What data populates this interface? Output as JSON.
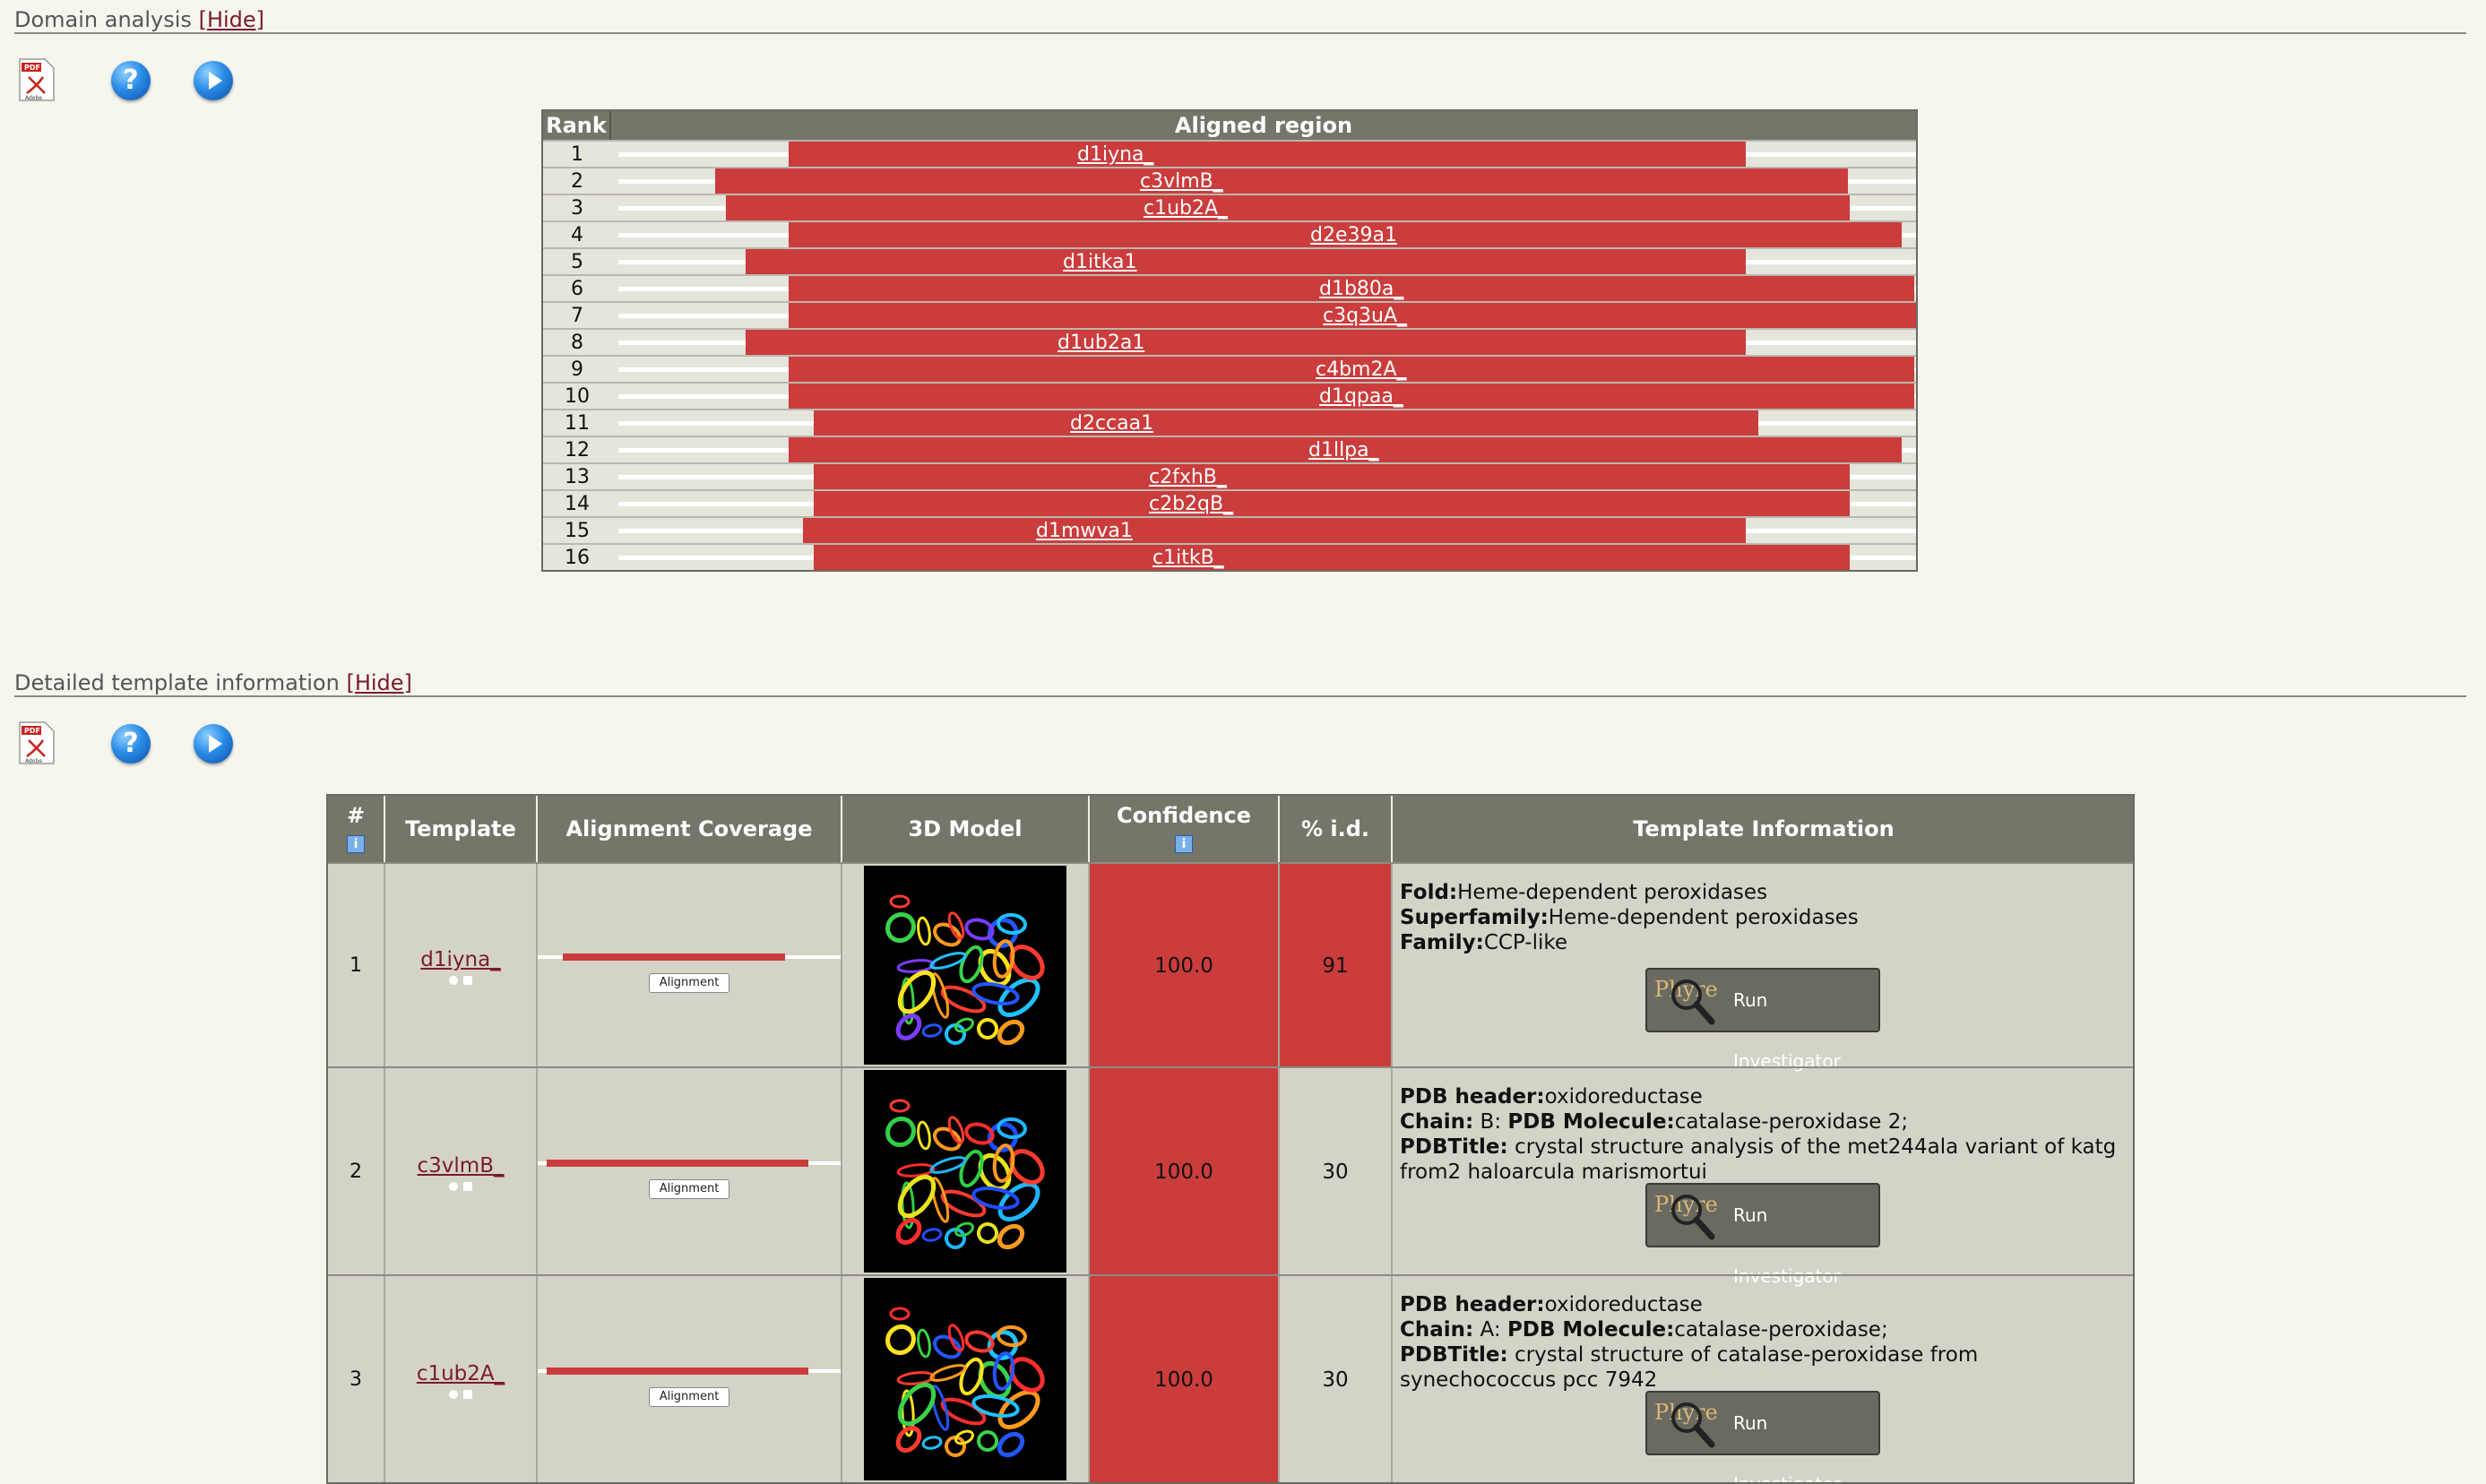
{
  "domain_analysis": {
    "title": "Domain analysis",
    "hide_label": "[Hide]",
    "table": {
      "rank_header": "Rank",
      "region_header": "Aligned region",
      "rows": [
        {
          "rank": "1",
          "name": "d1iyna_"
        },
        {
          "rank": "2",
          "name": "c3vlmB_"
        },
        {
          "rank": "3",
          "name": "c1ub2A_"
        },
        {
          "rank": "4",
          "name": "d2e39a1"
        },
        {
          "rank": "5",
          "name": "d1itka1"
        },
        {
          "rank": "6",
          "name": "d1b80a_"
        },
        {
          "rank": "7",
          "name": "c3q3uA_"
        },
        {
          "rank": "8",
          "name": "d1ub2a1"
        },
        {
          "rank": "9",
          "name": "c4bm2A_"
        },
        {
          "rank": "10",
          "name": "d1qpaa_"
        },
        {
          "rank": "11",
          "name": "d2ccaa1"
        },
        {
          "rank": "12",
          "name": "d1llpa_"
        },
        {
          "rank": "13",
          "name": "c2fxhB_"
        },
        {
          "rank": "14",
          "name": "c2b2qB_"
        },
        {
          "rank": "15",
          "name": "d1mwva1"
        },
        {
          "rank": "16",
          "name": "c1itkB_"
        }
      ]
    }
  },
  "template_info": {
    "title": "Detailed template information",
    "hide_label": "[Hide]",
    "headers": {
      "num": "#",
      "template": "Template",
      "coverage": "Alignment Coverage",
      "model": "3D Model",
      "confidence": "Confidence",
      "pid": "% i.d.",
      "info": "Template Information"
    },
    "align_label": "Alignment",
    "run_label": "Run Investigator",
    "logo_text": "Phyre",
    "rows": [
      {
        "num": "1",
        "template": "d1iyna_",
        "confidence": "100.0",
        "pid": "91",
        "lines": [
          {
            "k": "Fold:",
            "v": "Heme-dependent peroxidases"
          },
          {
            "k": "Superfamily:",
            "v": "Heme-dependent peroxidases"
          },
          {
            "k": "Family:",
            "v": "CCP-like"
          }
        ]
      },
      {
        "num": "2",
        "template": "c3vlmB_",
        "confidence": "100.0",
        "pid": "30",
        "lines": [
          {
            "k": "PDB header:",
            "v": "oxidoreductase"
          },
          {
            "k": "Chain:",
            "v": " B: ",
            "k2": "PDB Molecule:",
            "v2": "catalase-peroxidase 2;"
          },
          {
            "k": "PDBTitle:",
            "v": " crystal structure analysis of the met244ala variant of katg from2 haloarcula marismortui"
          }
        ]
      },
      {
        "num": "3",
        "template": "c1ub2A_",
        "confidence": "100.0",
        "pid": "30",
        "lines": [
          {
            "k": "PDB header:",
            "v": "oxidoreductase"
          },
          {
            "k": "Chain:",
            "v": " A: ",
            "k2": "PDB Molecule:",
            "v2": "catalase-peroxidase;"
          },
          {
            "k": "PDBTitle:",
            "v": " crystal structure of catalase-peroxidase from synechococcus pcc 7942"
          }
        ]
      }
    ]
  }
}
